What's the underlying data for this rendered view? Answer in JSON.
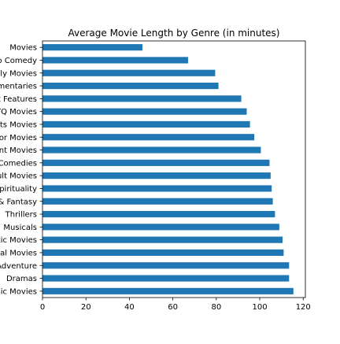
{
  "chart_data": {
    "type": "bar",
    "orientation": "horizontal",
    "title": "Average Movie Length by Genre (in minutes)",
    "xlabel": "",
    "ylabel": "",
    "xlim": [
      0,
      121
    ],
    "xticks": [
      0,
      20,
      40,
      60,
      80,
      100,
      120
    ],
    "grid": false,
    "bar_color": "#1f77b4",
    "categories": [
      "Movies",
      "Stand-Up Comedy",
      "Children & Family Movies",
      "Documentaries",
      "Independent Features",
      "LGBTQ Movies",
      "Sports Movies",
      "Horror Movies",
      "Faith & Spiritual Entertainment Movies",
      "Comedies",
      "Cult Movies",
      "Faith & Spirituality",
      "Sci-Fi & Fantasy",
      "Thrillers",
      "Musicals",
      "Romantic Movies",
      "International Movies",
      "Action & Adventure",
      "Dramas",
      "Classic Movies"
    ],
    "values": [
      46,
      67,
      79.5,
      81,
      91.5,
      94,
      95.5,
      97.5,
      100.5,
      104.5,
      105,
      105.5,
      106,
      107,
      109,
      110.5,
      111,
      113.5,
      113.5,
      115.5
    ]
  }
}
